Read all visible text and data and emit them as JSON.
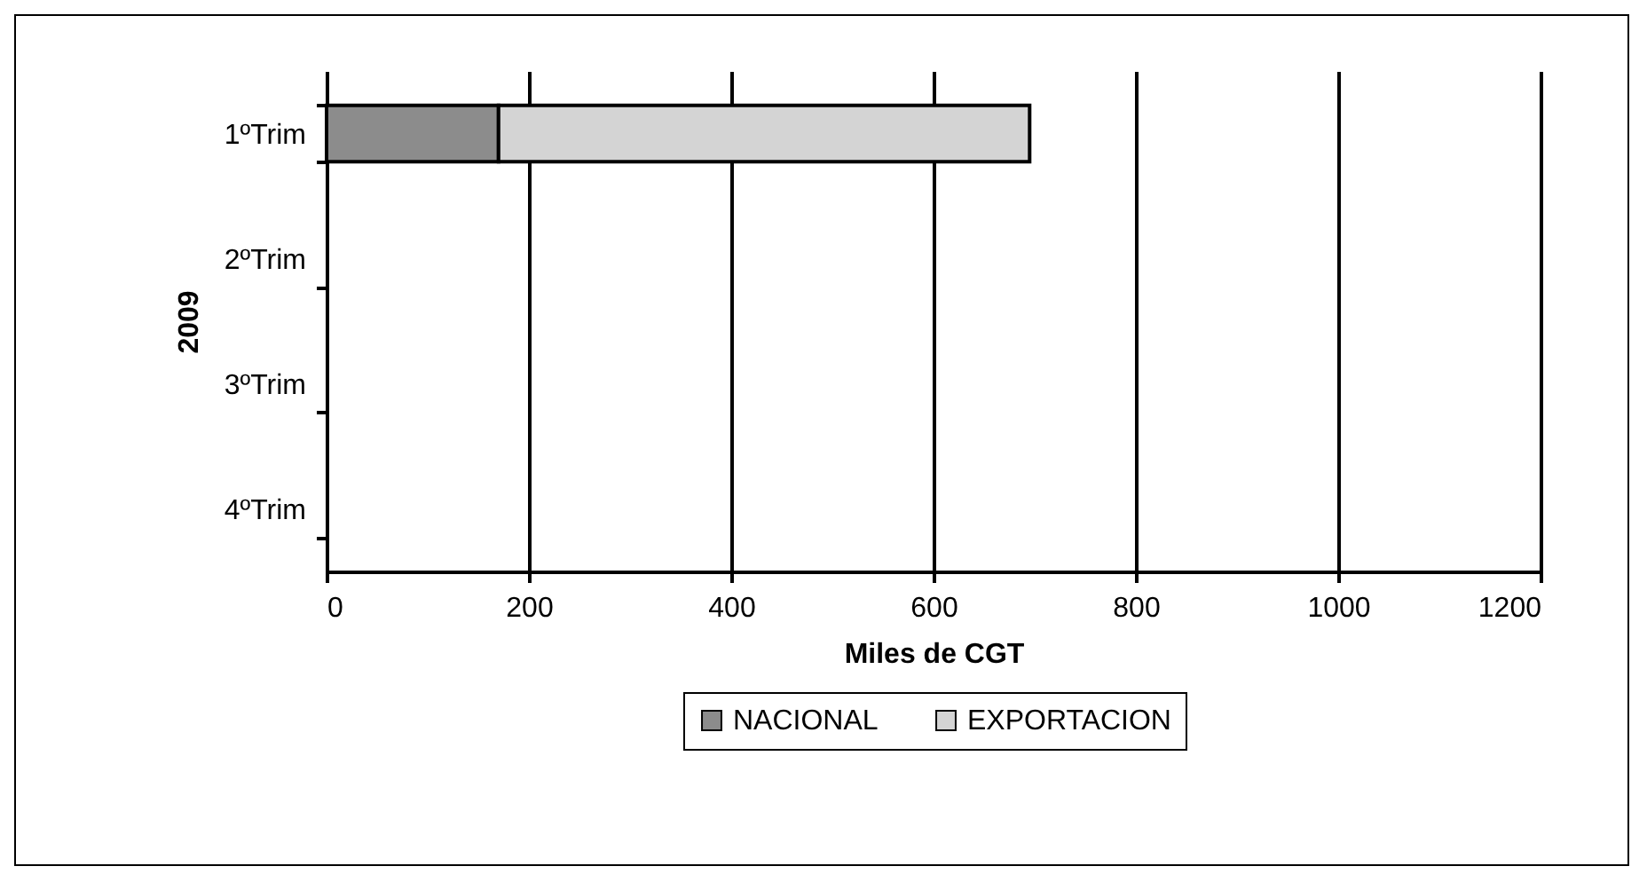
{
  "chart_data": {
    "type": "bar",
    "orientation": "horizontal",
    "stacked": true,
    "xlabel": "Miles de CGT",
    "ylabel": "2009",
    "categories": [
      "1ºTrim",
      "2ºTrim",
      "3ºTrim",
      "4ºTrim"
    ],
    "series": [
      {
        "name": "NACIONAL",
        "color": "#8c8c8c",
        "values": [
          170,
          null,
          null,
          null
        ]
      },
      {
        "name": "EXPORTACION",
        "color": "#d4d4d4",
        "values": [
          525,
          null,
          null,
          null
        ]
      }
    ],
    "xlim": [
      0,
      1200
    ],
    "xticks": [
      0,
      200,
      400,
      600,
      800,
      1000,
      1200
    ],
    "grid": "x",
    "legend": "bottom"
  }
}
